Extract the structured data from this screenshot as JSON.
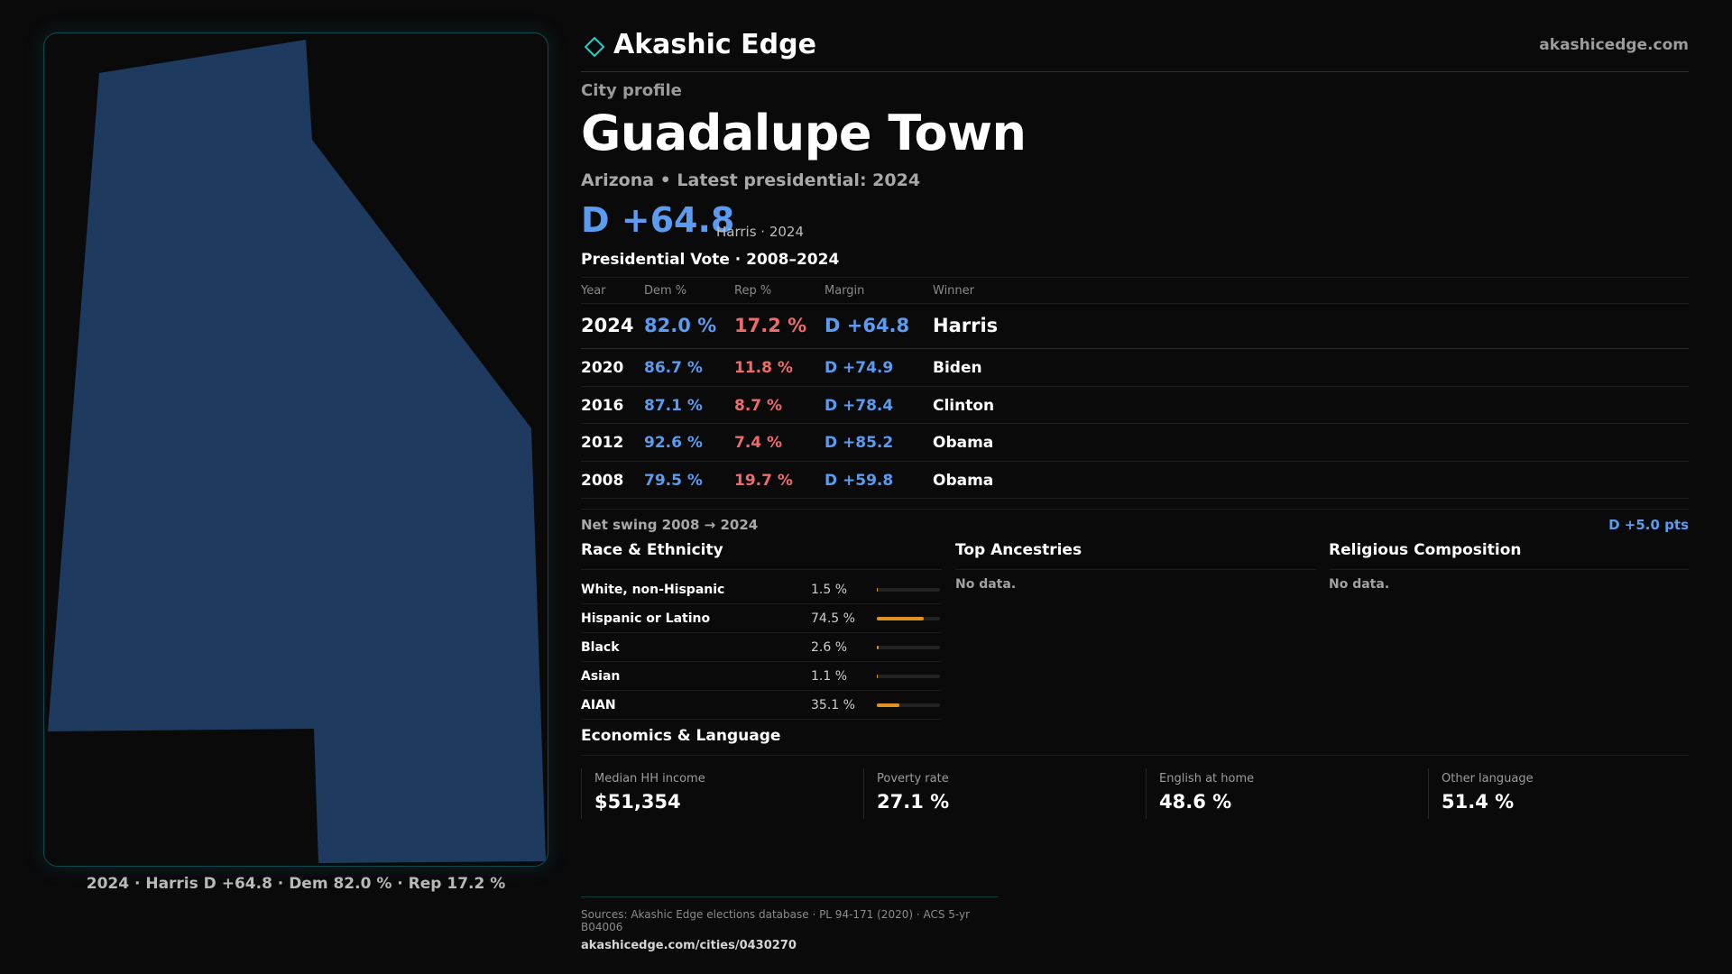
{
  "brand": {
    "name": "Akashic Edge",
    "url": "akashicedge.com",
    "accent": "#19d1c4"
  },
  "profile": {
    "kicker": "City profile",
    "city": "Guadalupe Town",
    "subline": "Arizona • Latest presidential: 2024",
    "headline_margin": "D +64.8",
    "headline_note": "Harris · 2024"
  },
  "map": {
    "caption": "2024 · Harris D +64.8 · Dem 82.0 % · Rep 17.2 %",
    "fill_color": "#1e3a5f"
  },
  "vote": {
    "title": "Presidential Vote · 2008–2024",
    "headers": {
      "year": "Year",
      "dem": "Dem %",
      "rep": "Rep %",
      "margin": "Margin",
      "winner": "Winner"
    },
    "rows": [
      {
        "year": "2024",
        "dem": "82.0 %",
        "rep": "17.2 %",
        "margin": "D +64.8",
        "winner": "Harris"
      },
      {
        "year": "2020",
        "dem": "86.7 %",
        "rep": "11.8 %",
        "margin": "D +74.9",
        "winner": "Biden"
      },
      {
        "year": "2016",
        "dem": "87.1 %",
        "rep": "8.7 %",
        "margin": "D +78.4",
        "winner": "Clinton"
      },
      {
        "year": "2012",
        "dem": "92.6 %",
        "rep": "7.4 %",
        "margin": "D +85.2",
        "winner": "Obama"
      },
      {
        "year": "2008",
        "dem": "79.5 %",
        "rep": "19.7 %",
        "margin": "D +59.8",
        "winner": "Obama"
      }
    ],
    "swing_label": "Net swing 2008 → 2024",
    "swing_value": "D +5.0 pts",
    "dem_color": "#5b9bf0",
    "rep_color": "#ef6b6b"
  },
  "race": {
    "title": "Race & Ethnicity",
    "bar_color": "#e0941f",
    "rows": [
      {
        "label": "White, non-Hispanic",
        "pct": "1.5 %",
        "value": 1.5
      },
      {
        "label": "Hispanic or Latino",
        "pct": "74.5 %",
        "value": 74.5
      },
      {
        "label": "Black",
        "pct": "2.6 %",
        "value": 2.6
      },
      {
        "label": "Asian",
        "pct": "1.1 %",
        "value": 1.1
      },
      {
        "label": "AIAN",
        "pct": "35.1 %",
        "value": 35.1
      }
    ]
  },
  "ancestries": {
    "title": "Top Ancestries",
    "empty": "No data."
  },
  "religion": {
    "title": "Religious Composition",
    "empty": "No data."
  },
  "economics": {
    "title": "Economics & Language",
    "cards": [
      {
        "label": "Median HH income",
        "value": "$51,354"
      },
      {
        "label": "Poverty rate",
        "value": "27.1 %"
      },
      {
        "label": "English at home",
        "value": "48.6 %"
      },
      {
        "label": "Other language",
        "value": "51.4 %"
      }
    ]
  },
  "sources": {
    "text": "Sources: Akashic Edge elections database · PL 94-171 (2020) · ACS 5-yr B04006",
    "link": "akashicedge.com/cities/0430270"
  }
}
